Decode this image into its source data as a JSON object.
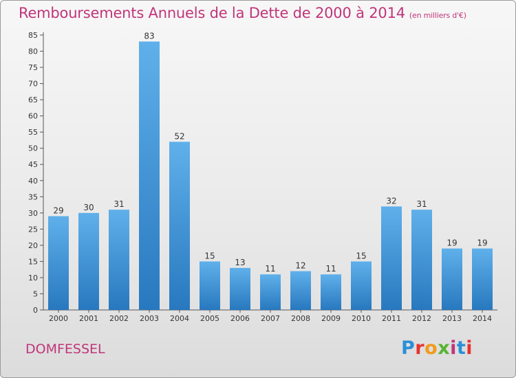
{
  "header": {
    "title": "Remboursements Annuels de la Dette de 2000 à 2014",
    "subtitle": "(en milliers d'€)"
  },
  "footer": {
    "place": "DOMFESSEL",
    "logo": "Proxiti"
  },
  "colors": {
    "title": "#c0357a",
    "bar_top": "#5fb0ea",
    "bar_bottom": "#2878bf"
  },
  "chart_data": {
    "type": "bar",
    "title": "Remboursements Annuels de la Dette de 2000 à 2014",
    "categories": [
      "2000",
      "2001",
      "2002",
      "2003",
      "2004",
      "2005",
      "2006",
      "2007",
      "2008",
      "2009",
      "2010",
      "2011",
      "2012",
      "2013",
      "2014"
    ],
    "values": [
      29,
      30,
      31,
      83,
      52,
      15,
      13,
      11,
      12,
      11,
      15,
      32,
      31,
      19,
      19
    ],
    "ylim": [
      0,
      85
    ],
    "yticks": [
      0,
      5,
      10,
      15,
      20,
      25,
      30,
      35,
      40,
      45,
      50,
      55,
      60,
      65,
      70,
      75,
      80,
      85
    ],
    "grid": false,
    "data_labels": true
  }
}
